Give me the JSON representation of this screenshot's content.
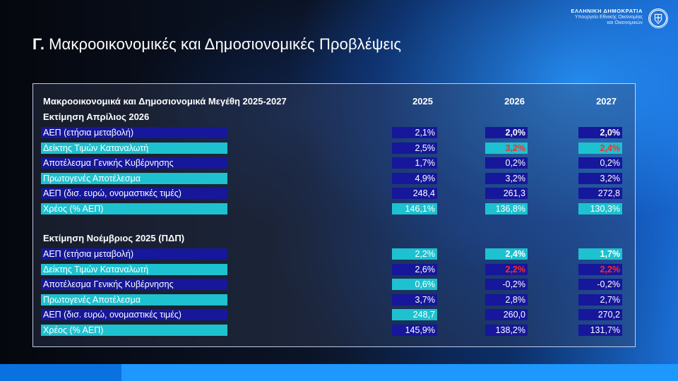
{
  "header": {
    "org_main": "ΕΛΛΗΝΙΚΗ ΔΗΜΟΚΡΑΤΙΑ",
    "org_line1": "Υπουργείο Εθνικής Οικονομίας",
    "org_line2": "και Οικονομικών"
  },
  "title": {
    "prefix": "Γ.",
    "text": "Μακροοικονομικές και Δημοσιονομικές Προβλέψεις"
  },
  "table": {
    "heading": "Μακροοικονομικά και Δημοσιονομικά Μεγέθη 2025-2027",
    "years": [
      "2025",
      "2026",
      "2027"
    ],
    "sections": [
      {
        "title": "Εκτίμηση Απρίλιος 2026",
        "rows": [
          {
            "label": "ΑΕΠ (ετήσια μεταβολή)",
            "v2025": "2,1%",
            "v2026": "2,0%",
            "v2027": "2,0%"
          },
          {
            "label": "Δείκτης Τιμών Καταναλωτή",
            "v2025": "2,5%",
            "v2026": "3,2%",
            "v2027": "2,4%"
          },
          {
            "label": "Αποτέλεσμα Γενικής Κυβέρνησης",
            "v2025": "1,7%",
            "v2026": "0,2%",
            "v2027": "0,2%"
          },
          {
            "label": "Πρωτογενές Αποτέλεσμα",
            "v2025": "4,9%",
            "v2026": "3,2%",
            "v2027": "3,2%"
          },
          {
            "label": "ΑΕΠ (δισ. ευρώ, ονομαστικές τιμές)",
            "v2025": "248,4",
            "v2026": "261,3",
            "v2027": "272,8"
          },
          {
            "label": "Χρέος (% ΑΕΠ)",
            "v2025": "146,1%",
            "v2026": "136,8%",
            "v2027": "130,3%"
          }
        ]
      },
      {
        "title": "Εκτίμηση Νοέμβριος 2025 (ΠΔΠ)",
        "rows": [
          {
            "label": "ΑΕΠ (ετήσια μεταβολή)",
            "v2025": "2,2%",
            "v2026": "2,4%",
            "v2027": "1,7%"
          },
          {
            "label": "Δείκτης Τιμών Καταναλωτή",
            "v2025": "2,6%",
            "v2026": "2,2%",
            "v2027": "2,2%"
          },
          {
            "label": "Αποτέλεσμα Γενικής Κυβέρνησης",
            "v2025": "0,6%",
            "v2026": "-0,2%",
            "v2027": "-0,2%"
          },
          {
            "label": "Πρωτογενές Αποτέλεσμα",
            "v2025": "3,7%",
            "v2026": "2,8%",
            "v2027": "2,7%"
          },
          {
            "label": "ΑΕΠ (δισ. ευρώ, ονομαστικές τιμές)",
            "v2025": "248,7",
            "v2026": "260,0",
            "v2027": "270,2"
          },
          {
            "label": "Χρέος (% ΑΕΠ)",
            "v2025": "145,9%",
            "v2026": "138,2%",
            "v2027": "131,7%"
          }
        ]
      }
    ]
  },
  "colors": {
    "navy": "#16179a",
    "teal": "#1ec1cf",
    "highlight_red": "#ff2a2a"
  }
}
